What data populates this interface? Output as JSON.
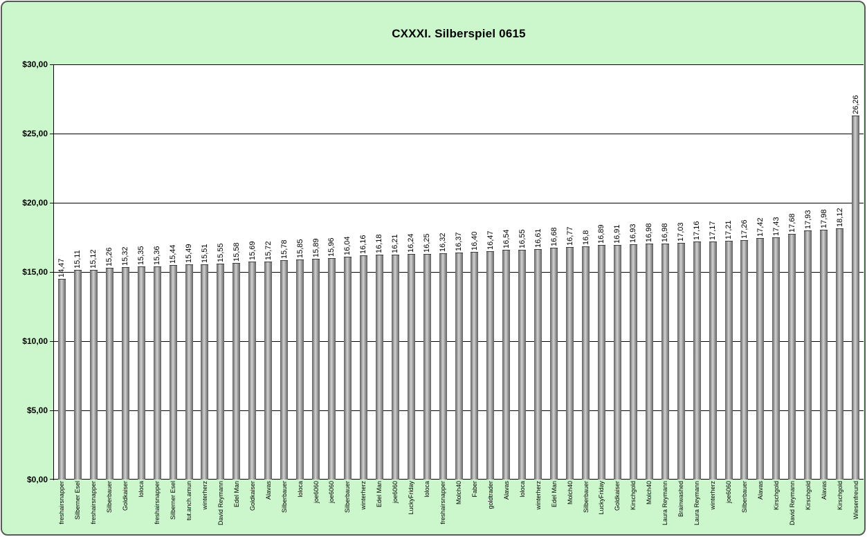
{
  "chart_data": {
    "type": "bar",
    "title": "CXXXI. Silberspiel 0615",
    "xlabel": "",
    "ylabel": "",
    "ylim": [
      0,
      30
    ],
    "grid": true,
    "legend": false,
    "y_ticks": [
      {
        "label": "$0,00",
        "value": 0
      },
      {
        "label": "$5,00",
        "value": 5
      },
      {
        "label": "$10,00",
        "value": 10
      },
      {
        "label": "$15,00",
        "value": 15
      },
      {
        "label": "$20,00",
        "value": 20
      },
      {
        "label": "$25,00",
        "value": 25
      },
      {
        "label": "$30,00",
        "value": 30
      }
    ],
    "categories": [
      "freshairsnapper",
      "Silberner Esel",
      "freshairsnapper",
      "Silberbauer",
      "Goldkaiser",
      "loloca",
      "freshairsnapper",
      "Silberner Esel",
      "tut.anch.amun",
      "winterherz",
      "David Reymann",
      "Edel Man",
      "Goldkaiser",
      "Alavas",
      "Silberbauer",
      "loloca",
      "joe6060",
      "joe6060",
      "Silberbauer",
      "winterherz",
      "Edel Man",
      "joe6060",
      "LuckyFriday",
      "loloca",
      "freshairsnapper",
      "Molch40",
      "Faber",
      "goldtrader",
      "Alavas",
      "loloca",
      "winterherz",
      "Edel Man",
      "Molch40",
      "Silberbauer",
      "LuckyFriday",
      "Goldkaiser",
      "Kirschgold",
      "Molch40",
      "Laura Reymann",
      "Brainwashed",
      "Laura Reymann",
      "winterherz",
      "joe6060",
      "Silberbauer",
      "Alavas",
      "Kirschgold",
      "David Reymann",
      "Kirschgold",
      "Alavas",
      "Kirschgold",
      "Wiesenfreund"
    ],
    "values": [
      14.47,
      15.11,
      15.12,
      15.26,
      15.32,
      15.35,
      15.36,
      15.44,
      15.49,
      15.51,
      15.55,
      15.58,
      15.69,
      15.72,
      15.78,
      15.85,
      15.89,
      15.96,
      16.04,
      16.16,
      16.18,
      16.21,
      16.24,
      16.25,
      16.32,
      16.37,
      16.4,
      16.47,
      16.54,
      16.55,
      16.61,
      16.68,
      16.77,
      16.8,
      16.89,
      16.91,
      16.93,
      16.98,
      16.98,
      17.03,
      17.16,
      17.17,
      17.21,
      17.26,
      17.42,
      17.43,
      17.68,
      17.93,
      17.98,
      18.12,
      26.26
    ],
    "value_labels": [
      "14,47",
      "15,11",
      "15,12",
      "15,26",
      "15,32",
      "15,35",
      "15,36",
      "15,44",
      "15,49",
      "15,51",
      "15,55",
      "15,58",
      "15,69",
      "15,72",
      "15,78",
      "15,85",
      "15,89",
      "15,96",
      "16,04",
      "16,16",
      "16,18",
      "16,21",
      "16,24",
      "16,25",
      "16,32",
      "16,37",
      "16,40",
      "16,47",
      "16,54",
      "16,55",
      "16,61",
      "16,68",
      "16,77",
      "16,8",
      "16,89",
      "16,91",
      "16,93",
      "16,98",
      "16,98",
      "17,03",
      "17,16",
      "17,17",
      "17,21",
      "17,26",
      "17,42",
      "17,43",
      "17,68",
      "17,93",
      "17,98",
      "18,12",
      "26,26"
    ],
    "colors": {
      "background": "#ccf7cc",
      "plot_background": "#ffffff",
      "gridline": "#000000",
      "text": "#000000",
      "frame_border": "#5a5a5a",
      "bar_gradient": [
        "#5f5f5f",
        "#d2d2d2",
        "#5f5f5f"
      ]
    }
  }
}
